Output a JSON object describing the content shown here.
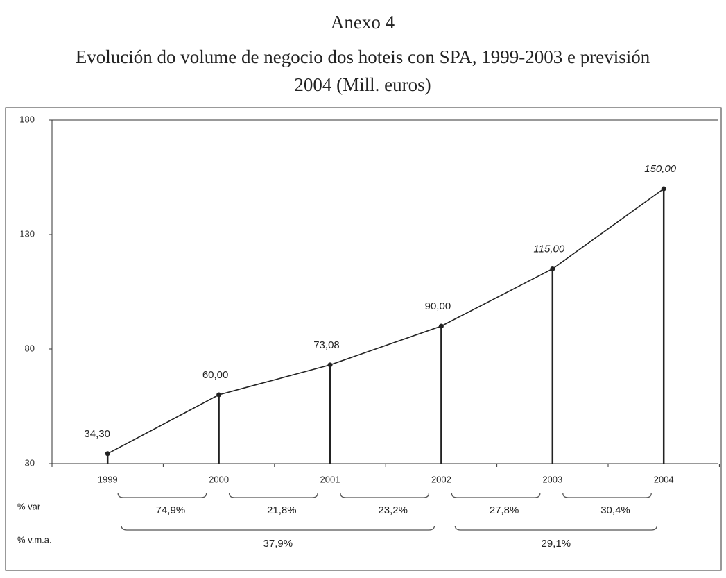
{
  "chart_data": {
    "type": "line",
    "title": "Anexo 4",
    "subtitle": [
      "Evolución do volume de negocio dos hoteis con SPA, 1999-2003 e previsión",
      "2004 (Mill. euros)"
    ],
    "categories": [
      "1999",
      "2000",
      "2001",
      "2002",
      "2003",
      "2004"
    ],
    "values": [
      34.3,
      60,
      73.08,
      90,
      115,
      150
    ],
    "value_labels": [
      "34,30",
      "60,00",
      "73,08",
      "90,00",
      "115,00",
      "150,00"
    ],
    "color": "#222222",
    "ylim": [
      30,
      180
    ],
    "yticks": [
      30,
      80,
      130,
      180
    ],
    "var_row": {
      "label": "% var",
      "values": [
        74.9,
        21.8,
        23.2,
        27.8,
        30.4
      ],
      "value_labels": [
        "74,9%",
        "21,8%",
        "23,2%",
        "27,8%",
        "30,4%"
      ]
    },
    "vma_row": {
      "label": "% v.m.a.",
      "values": [
        37.9,
        29.1
      ],
      "value_labels": [
        "37,9%",
        "29,1%"
      ]
    }
  }
}
